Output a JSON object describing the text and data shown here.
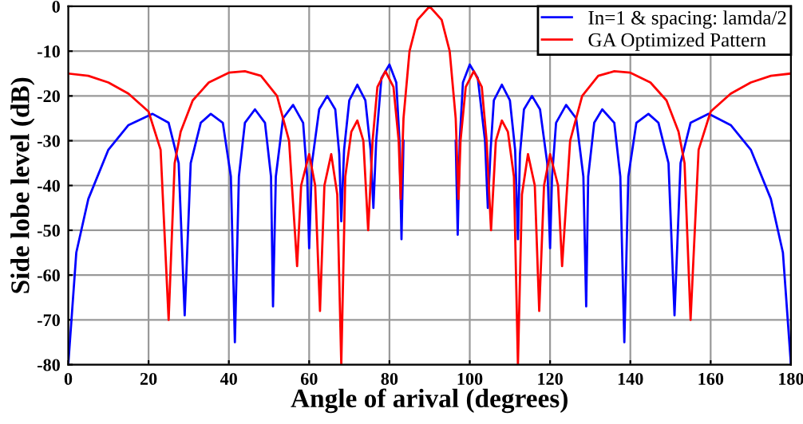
{
  "chart_data": {
    "type": "line",
    "xlabel": "Angle of arival (degrees)",
    "ylabel": "Side lobe level (dB)",
    "xlim": [
      0,
      180
    ],
    "xticks": [
      0,
      20,
      40,
      60,
      80,
      100,
      120,
      140,
      160,
      180
    ],
    "ylim": [
      -80,
      0
    ],
    "yticks": [
      -80,
      -70,
      -60,
      -50,
      -40,
      -30,
      -20,
      -10,
      0
    ],
    "grid": true,
    "legend": "top right",
    "series": [
      {
        "name": "In=1 & spacing: lamda/2",
        "color": "#0000ff",
        "x": [
          0,
          2,
          5,
          10,
          15,
          21,
          25,
          27.5,
          29,
          30.5,
          33,
          35.5,
          38.5,
          40.5,
          41.5,
          42.5,
          44,
          46.5,
          49,
          50.5,
          51,
          51.7,
          53.5,
          56,
          58.5,
          59.5,
          60,
          60.7,
          62.5,
          64.5,
          66.5,
          67.5,
          68,
          68.7,
          70,
          72,
          74,
          75.3,
          76,
          76.7,
          78,
          80,
          81.7,
          82.5,
          83,
          83.5,
          85,
          87,
          90,
          93,
          95,
          96.5,
          97,
          97.5,
          98.3,
          100,
          102,
          103.8,
          104.5,
          105.2,
          106,
          108,
          110,
          111.3,
          112,
          112.5,
          113.5,
          115.5,
          117.5,
          119.3,
          120,
          120.5,
          121.5,
          124,
          126.5,
          128.3,
          129,
          129.5,
          131,
          133,
          136,
          137.5,
          138.5,
          139.5,
          141.5,
          144.5,
          147,
          149.5,
          151,
          152.5,
          155,
          159.5,
          165,
          170,
          175,
          178,
          180
        ],
        "values": [
          -80,
          -55,
          -43,
          -32,
          -26.5,
          -24,
          -26,
          -35,
          -69,
          -35,
          -26,
          -24,
          -26,
          -38,
          -75,
          -38,
          -26,
          -23,
          -26,
          -38,
          -67,
          -38,
          -25,
          -22,
          -26,
          -38,
          -54,
          -35,
          -23,
          -20,
          -23,
          -33,
          -48,
          -32,
          -21,
          -17.5,
          -21,
          -32,
          -45,
          -30,
          -16,
          -13,
          -17,
          -30,
          -52,
          -30,
          null,
          null,
          null,
          null,
          null,
          -30,
          -51,
          -30,
          -17,
          -13,
          -16,
          -30,
          -45,
          -32,
          -21,
          -17.5,
          -21,
          -32,
          -52,
          -33,
          -23,
          -20,
          -23,
          -35,
          -54,
          -38,
          -26,
          -22,
          -25,
          -38,
          -67,
          -38,
          -26,
          -23,
          -26,
          -38,
          -75,
          -38,
          -26,
          -24,
          -26,
          -35,
          -69,
          -35,
          -26,
          -24,
          -26.5,
          -32,
          -43,
          -55,
          -80
        ]
      },
      {
        "name": "GA Optimized Pattern",
        "color": "#ff0000",
        "x": [
          0,
          5,
          10,
          15,
          20,
          23,
          25,
          26.5,
          28,
          31,
          35,
          40,
          44,
          48,
          52,
          55,
          57,
          58,
          60,
          61.5,
          62.7,
          63.8,
          65.5,
          67,
          68,
          69,
          70.5,
          72,
          73.5,
          74.7,
          75.8,
          77,
          79,
          81,
          82.3,
          82.8,
          83.5,
          85,
          87,
          90,
          93,
          95,
          96.5,
          97.2,
          97.7,
          99,
          101,
          103,
          104.2,
          105.3,
          106.5,
          108,
          109.5,
          111,
          112,
          113,
          114.5,
          116.2,
          117.3,
          118.5,
          120,
          122,
          123,
          125,
          128,
          132,
          136,
          140,
          145,
          149,
          152,
          153.5,
          155,
          157,
          160,
          165,
          170,
          175,
          180
        ],
        "values": [
          -15,
          -15.5,
          -17,
          -19.5,
          -23.5,
          -32,
          -70,
          -35,
          -28,
          -21,
          -17,
          -14.8,
          -14.5,
          -15.5,
          -20,
          -30,
          -58,
          -40,
          -33,
          -40,
          -68,
          -40,
          -33,
          -42,
          -80,
          -38,
          -28,
          -25.5,
          -30,
          -50,
          -30,
          -18,
          -14.5,
          -18,
          -30,
          -43,
          -25,
          -10,
          -3,
          0,
          -3,
          -10,
          -25,
          -43,
          -30,
          -18,
          -14.5,
          -18,
          -30,
          -50,
          -30,
          -25.5,
          -28,
          -38,
          -80,
          -42,
          -33,
          -40,
          -68,
          -40,
          -33,
          -40,
          -58,
          -30,
          -20,
          -15.5,
          -14.5,
          -14.8,
          -17,
          -21,
          -28,
          -35,
          -70,
          -32,
          -23.5,
          -19.5,
          -17,
          -15.5,
          -15
        ]
      }
    ]
  }
}
